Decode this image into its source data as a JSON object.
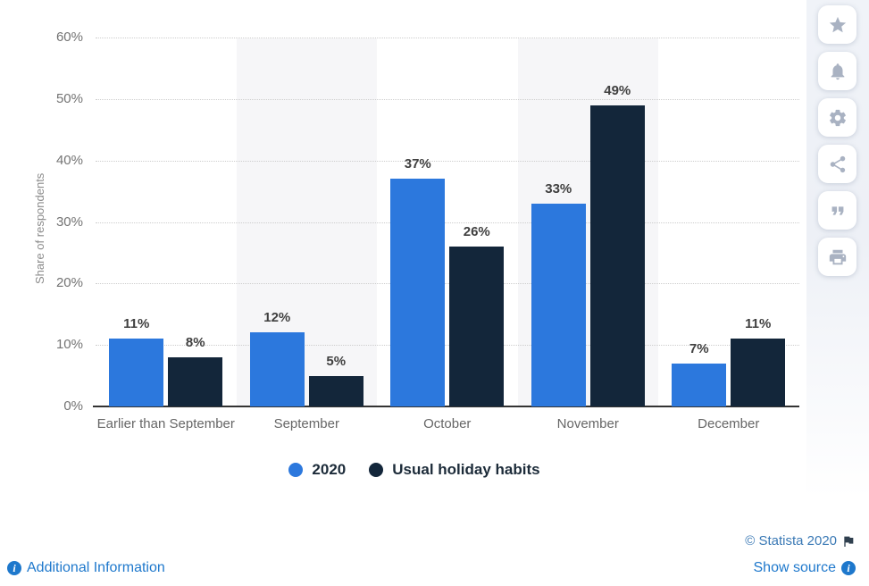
{
  "chart_data": {
    "type": "bar",
    "title": "",
    "ylabel": "Share of respondents",
    "categories": [
      "Earlier than September",
      "September",
      "October",
      "November",
      "December"
    ],
    "series": [
      {
        "name": "2020",
        "color": "#2c78dd",
        "values": [
          11,
          12,
          37,
          33,
          7
        ]
      },
      {
        "name": "Usual holiday habits",
        "color": "#13263a",
        "values": [
          8,
          5,
          26,
          49,
          11
        ]
      }
    ],
    "value_suffix": "%",
    "ylim": [
      0,
      60
    ],
    "ytick_step": 10,
    "ytick_labels": [
      "0%",
      "10%",
      "20%",
      "30%",
      "40%",
      "50%",
      "60%"
    ],
    "grid": "horizontal-dotted",
    "legend_position": "bottom",
    "striped_columns": [
      1,
      3
    ],
    "stripe_color": "#f6f6f8",
    "grid_color": "#cdcdcd",
    "axis_color": "#333333"
  },
  "toolbar": {
    "icons": [
      {
        "name": "star-icon"
      },
      {
        "name": "bell-icon"
      },
      {
        "name": "gear-icon"
      },
      {
        "name": "share-icon"
      },
      {
        "name": "quote-icon"
      },
      {
        "name": "print-icon"
      }
    ],
    "icon_color": "#a9b2c2"
  },
  "footer": {
    "copyright": "© Statista 2020",
    "additional_info_label": "Additional Information",
    "show_source_label": "Show source",
    "link_color": "#1e78cc",
    "copyright_color": "#3a79b5"
  }
}
